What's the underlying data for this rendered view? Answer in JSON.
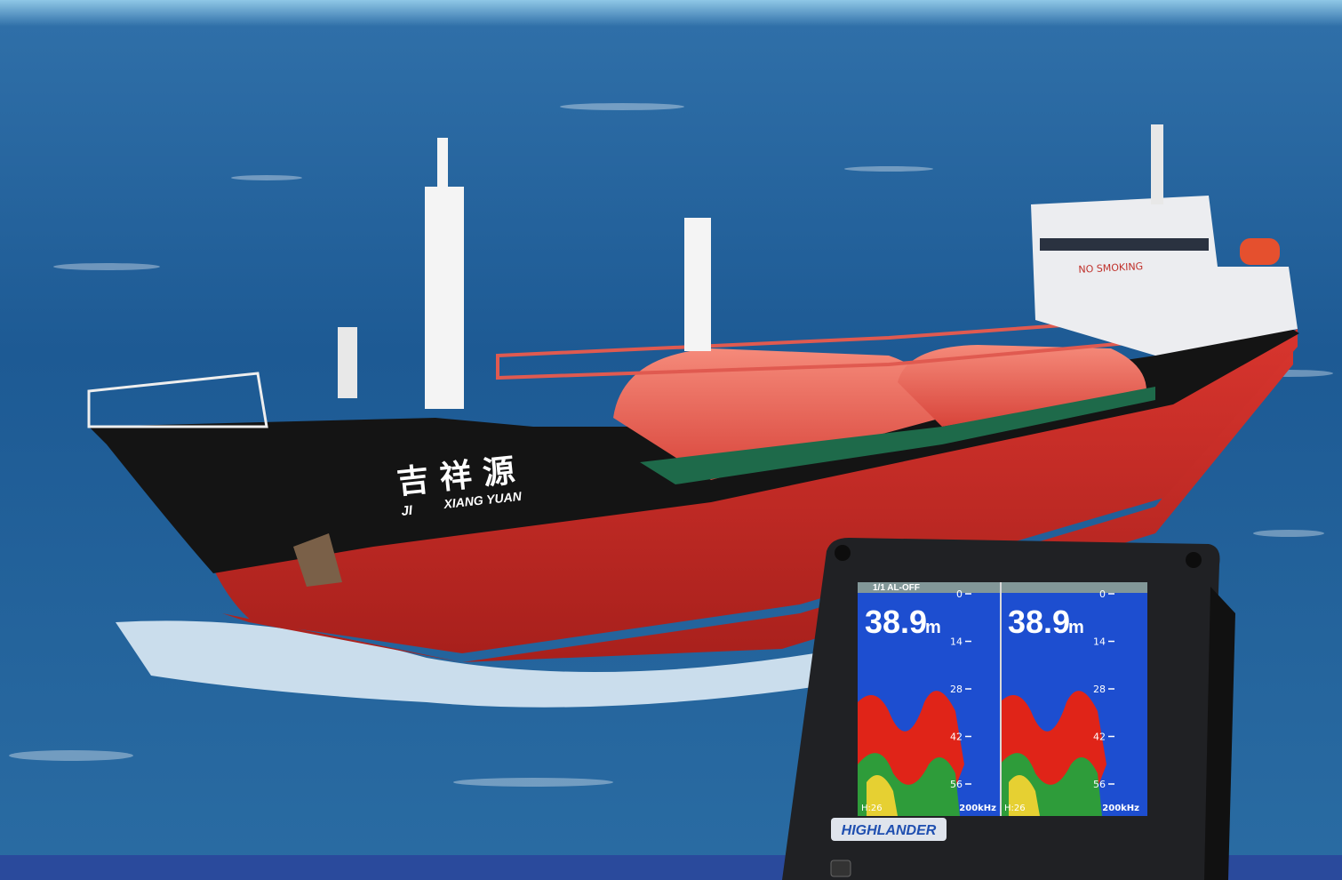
{
  "ship": {
    "sign": "NO SMOKING",
    "name_cn": "吉 祥 源",
    "name_ji": "JI",
    "name_en": "XIANG YUAN"
  },
  "device": {
    "brand": "HIGHLANDER",
    "status": "1/1 AL-OFF",
    "panels": [
      {
        "depth": "38.9",
        "unit": "m",
        "scale": [
          0,
          14,
          28,
          42,
          56
        ],
        "gain": "H:26",
        "freq": "200kHz"
      },
      {
        "depth": "38.9",
        "unit": "m",
        "scale": [
          0,
          14,
          28,
          42,
          56
        ],
        "gain": "H:26",
        "freq": "200kHz"
      }
    ]
  }
}
